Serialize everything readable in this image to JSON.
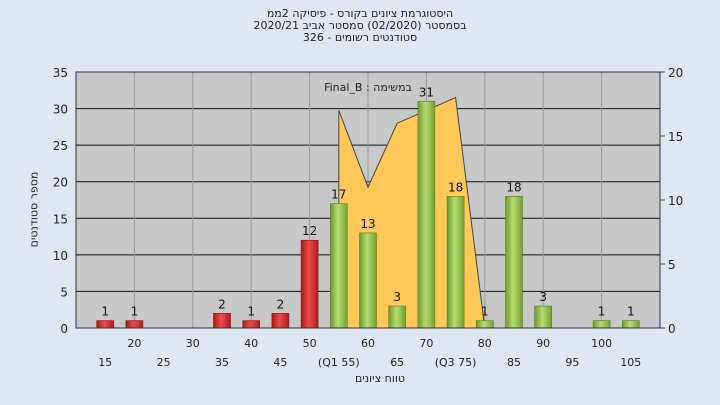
{
  "title_lines": [
    "היסטוגרמת ציונים בקורס - פיסיקה 2ממ",
    "בסמסטר  (02/2020)  סמסטר אביב 2020/21",
    "סטודנטים רשומים - 326"
  ],
  "annotation": "במשימה : Final_B",
  "colors": {
    "plot_bg": "#c8c8c8",
    "red_bar": "#dd2a2a",
    "green_bar": "#98c450",
    "area_fill": "#ffc857",
    "area_edge": "#e0a020",
    "grid": "#111111",
    "outer_bg": "#dfe8f2"
  },
  "chart_data": {
    "type": "bar",
    "xlabel": "טווח ציונים",
    "ylabel": "מספר סטודנטים",
    "ylim": [
      0,
      35
    ],
    "y_ticks": [
      0,
      5,
      10,
      15,
      20,
      25,
      30,
      35
    ],
    "y2lim": [
      0,
      20
    ],
    "y2_ticks": [
      0,
      5,
      10,
      15,
      20
    ],
    "x_tick_labels_lower": [
      "15",
      "25",
      "35",
      "45",
      "(Q1 55)",
      "65",
      "(Q3 75)",
      "85",
      "95",
      "105"
    ],
    "x_tick_labels_upper": [
      "20",
      "30",
      "40",
      "50",
      "60",
      "70",
      "80",
      "90",
      "100"
    ],
    "bars": [
      {
        "x": 15,
        "value": 1,
        "color": "red"
      },
      {
        "x": 20,
        "value": 1,
        "color": "red"
      },
      {
        "x": 35,
        "value": 2,
        "color": "red"
      },
      {
        "x": 40,
        "value": 1,
        "color": "red"
      },
      {
        "x": 45,
        "value": 2,
        "color": "red"
      },
      {
        "x": 50,
        "value": 12,
        "color": "red"
      },
      {
        "x": 55,
        "value": 17,
        "color": "green"
      },
      {
        "x": 60,
        "value": 13,
        "color": "green"
      },
      {
        "x": 65,
        "value": 3,
        "color": "green"
      },
      {
        "x": 70,
        "value": 31,
        "color": "green"
      },
      {
        "x": 75,
        "value": 18,
        "color": "green"
      },
      {
        "x": 80,
        "value": 1,
        "color": "green"
      },
      {
        "x": 85,
        "value": 18,
        "color": "green"
      },
      {
        "x": 90,
        "value": 3,
        "color": "green"
      },
      {
        "x": 100,
        "value": 1,
        "color": "green"
      },
      {
        "x": 105,
        "value": 1,
        "color": "green"
      }
    ],
    "area_series": [
      {
        "x": 55,
        "y": 17
      },
      {
        "x": 60,
        "y": 11
      },
      {
        "x": 65,
        "y": 16
      },
      {
        "x": 70,
        "y": 17
      },
      {
        "x": 75,
        "y": 18
      },
      {
        "x": 80,
        "y": 0
      }
    ]
  }
}
